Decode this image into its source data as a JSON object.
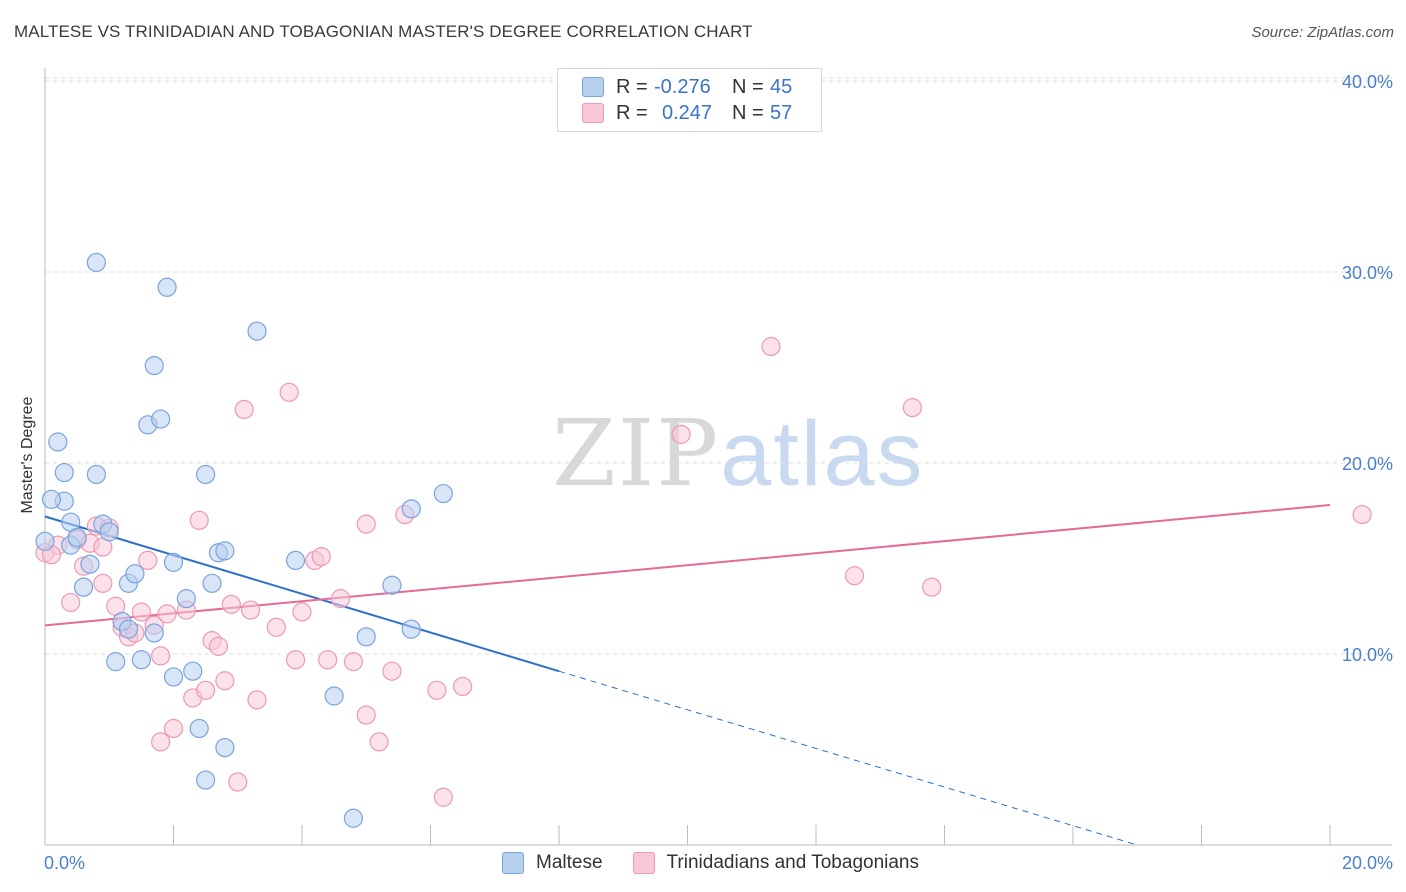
{
  "header": {
    "title": "MALTESE VS TRINIDADIAN AND TOBAGONIAN MASTER'S DEGREE CORRELATION CHART",
    "source": "Source: ZipAtlas.com"
  },
  "watermark": {
    "zip": "ZIP",
    "atlas": "atlas"
  },
  "legend": {
    "rows": [
      {
        "r_label": "R =",
        "r_value": "-0.276",
        "n_label": "N =",
        "n_value": "45"
      },
      {
        "r_label": "R =",
        "r_value": "0.247",
        "n_label": "N =",
        "n_value": "57"
      }
    ]
  },
  "bottom_legend": {
    "series1": "Maltese",
    "series2": "Trinidadians and Tobagonians"
  },
  "colors": {
    "maltese_fill": "#b8d0f0",
    "maltese_stroke": "#7aa3dc",
    "maltese_line": "#2d6fcc",
    "trini_fill": "#f8c8d8",
    "trini_stroke": "#ec9ab4",
    "trini_line": "#e56b97",
    "accent_text": "#4a7fcf"
  },
  "chart_data": {
    "type": "scatter",
    "title": "MALTESE VS TRINIDADIAN AND TOBAGONIAN MASTER'S DEGREE CORRELATION CHART",
    "xlabel": "",
    "ylabel": "Master's Degree",
    "xlim": [
      0,
      20
    ],
    "ylim": [
      0,
      42
    ],
    "x_tick_labels": [
      "0.0%",
      "20.0%"
    ],
    "y_ticks": [
      10,
      20,
      30,
      40
    ],
    "y_tick_labels": [
      "10.0%",
      "20.0%",
      "30.0%",
      "40.0%"
    ],
    "grid": true,
    "legend_position": "top-center",
    "series": [
      {
        "name": "Maltese",
        "points": [
          [
            0.0,
            15.9
          ],
          [
            0.2,
            21.1
          ],
          [
            0.3,
            19.5
          ],
          [
            0.3,
            18.0
          ],
          [
            0.4,
            16.9
          ],
          [
            0.4,
            15.7
          ],
          [
            0.5,
            16.1
          ],
          [
            0.6,
            13.5
          ],
          [
            0.7,
            14.7
          ],
          [
            0.8,
            30.5
          ],
          [
            0.8,
            19.4
          ],
          [
            0.9,
            16.8
          ],
          [
            1.0,
            16.4
          ],
          [
            1.1,
            9.6
          ],
          [
            1.2,
            11.7
          ],
          [
            1.3,
            13.7
          ],
          [
            1.3,
            11.3
          ],
          [
            1.4,
            14.2
          ],
          [
            1.5,
            9.7
          ],
          [
            1.6,
            22.0
          ],
          [
            1.7,
            25.1
          ],
          [
            1.7,
            11.1
          ],
          [
            1.8,
            22.3
          ],
          [
            1.9,
            29.2
          ],
          [
            2.0,
            8.8
          ],
          [
            2.0,
            14.8
          ],
          [
            2.2,
            12.9
          ],
          [
            2.3,
            9.1
          ],
          [
            2.4,
            6.1
          ],
          [
            2.5,
            3.4
          ],
          [
            2.5,
            19.4
          ],
          [
            2.6,
            13.7
          ],
          [
            2.7,
            15.3
          ],
          [
            2.8,
            15.4
          ],
          [
            2.8,
            5.1
          ],
          [
            3.3,
            26.9
          ],
          [
            3.9,
            14.9
          ],
          [
            4.5,
            7.8
          ],
          [
            4.8,
            1.4
          ],
          [
            5.0,
            10.9
          ],
          [
            5.4,
            13.6
          ],
          [
            5.7,
            17.6
          ],
          [
            5.7,
            11.3
          ],
          [
            6.2,
            18.4
          ],
          [
            0.1,
            18.1
          ]
        ]
      },
      {
        "name": "Trinidadians and Tobagonians",
        "points": [
          [
            0.0,
            15.3
          ],
          [
            0.2,
            15.7
          ],
          [
            0.4,
            12.7
          ],
          [
            0.5,
            16.0
          ],
          [
            0.6,
            14.6
          ],
          [
            0.7,
            15.8
          ],
          [
            0.8,
            16.7
          ],
          [
            0.9,
            13.7
          ],
          [
            1.0,
            16.6
          ],
          [
            1.1,
            12.5
          ],
          [
            1.2,
            11.4
          ],
          [
            1.3,
            10.9
          ],
          [
            1.4,
            11.1
          ],
          [
            1.5,
            12.2
          ],
          [
            1.6,
            14.9
          ],
          [
            1.7,
            11.5
          ],
          [
            1.8,
            9.9
          ],
          [
            1.8,
            5.4
          ],
          [
            1.9,
            12.1
          ],
          [
            2.0,
            6.1
          ],
          [
            2.2,
            12.3
          ],
          [
            2.3,
            7.7
          ],
          [
            2.4,
            17.0
          ],
          [
            2.5,
            8.1
          ],
          [
            2.6,
            10.7
          ],
          [
            2.7,
            10.4
          ],
          [
            2.8,
            8.6
          ],
          [
            2.9,
            12.6
          ],
          [
            3.0,
            3.3
          ],
          [
            3.1,
            22.8
          ],
          [
            3.2,
            12.3
          ],
          [
            3.3,
            7.6
          ],
          [
            3.6,
            11.4
          ],
          [
            3.8,
            23.7
          ],
          [
            3.9,
            9.7
          ],
          [
            4.0,
            12.2
          ],
          [
            4.2,
            14.9
          ],
          [
            4.3,
            15.1
          ],
          [
            4.4,
            9.7
          ],
          [
            4.6,
            12.9
          ],
          [
            4.8,
            9.6
          ],
          [
            5.0,
            6.8
          ],
          [
            5.0,
            16.8
          ],
          [
            5.2,
            5.4
          ],
          [
            5.4,
            9.1
          ],
          [
            5.6,
            17.3
          ],
          [
            6.1,
            8.1
          ],
          [
            6.2,
            2.5
          ],
          [
            6.5,
            8.3
          ],
          [
            9.9,
            21.5
          ],
          [
            11.3,
            26.1
          ],
          [
            12.6,
            14.1
          ],
          [
            13.5,
            22.9
          ],
          [
            13.8,
            13.5
          ],
          [
            20.5,
            17.3
          ],
          [
            0.1,
            15.2
          ],
          [
            0.9,
            15.6
          ]
        ]
      }
    ],
    "trendlines": [
      {
        "series": "Maltese",
        "x": [
          0,
          8
        ],
        "y": [
          17.2,
          9.1
        ],
        "extended_x": [
          8,
          17
        ],
        "extended_y": [
          9.1,
          0
        ]
      },
      {
        "series": "Trinidadians and Tobagonians",
        "x": [
          0,
          20
        ],
        "y": [
          11.5,
          17.8
        ]
      }
    ]
  }
}
